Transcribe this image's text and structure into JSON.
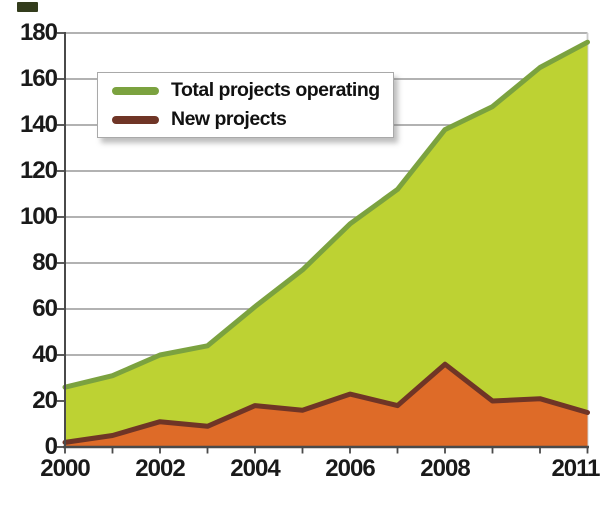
{
  "chart_data": {
    "type": "area",
    "title": "",
    "xlabel": "",
    "ylabel": "",
    "x": [
      2000,
      2001,
      2002,
      2003,
      2004,
      2005,
      2006,
      2007,
      2008,
      2009,
      2010,
      2011
    ],
    "series": [
      {
        "id": "total-projects",
        "name": "Total projects operating",
        "values": [
          26,
          31,
          40,
          44,
          61,
          77,
          97,
          112,
          138,
          148,
          165,
          176
        ],
        "line_color": "#7ba23f",
        "fill_color": "#bdd233"
      },
      {
        "id": "new-projects",
        "name": "New projects",
        "values": [
          2,
          5,
          11,
          9,
          18,
          16,
          23,
          18,
          36,
          20,
          21,
          15
        ],
        "line_color": "#6f3526",
        "fill_color": "#de6b28"
      }
    ],
    "xlim": [
      2000,
      2011
    ],
    "ylim": [
      0,
      180
    ],
    "y_ticks": [
      0,
      20,
      40,
      60,
      80,
      100,
      120,
      140,
      160,
      180
    ],
    "x_tick_years": [
      2000,
      2001,
      2002,
      2003,
      2004,
      2005,
      2006,
      2007,
      2008,
      2009,
      2010,
      2011
    ],
    "x_label_years": [
      2000,
      2002,
      2004,
      2006,
      2008,
      2011
    ],
    "grid": "horizontal",
    "legend_position": "top-left"
  },
  "colors": {
    "background": "#ffffff",
    "grid": "#999999",
    "axis": "#4a4a4a",
    "plot_right_border": "#cccccc",
    "tick_text": "#1a1a1a",
    "legend_border": "#a9a9a9",
    "legend_bg": "#ffffff",
    "corner_mark": "#333c1c"
  }
}
